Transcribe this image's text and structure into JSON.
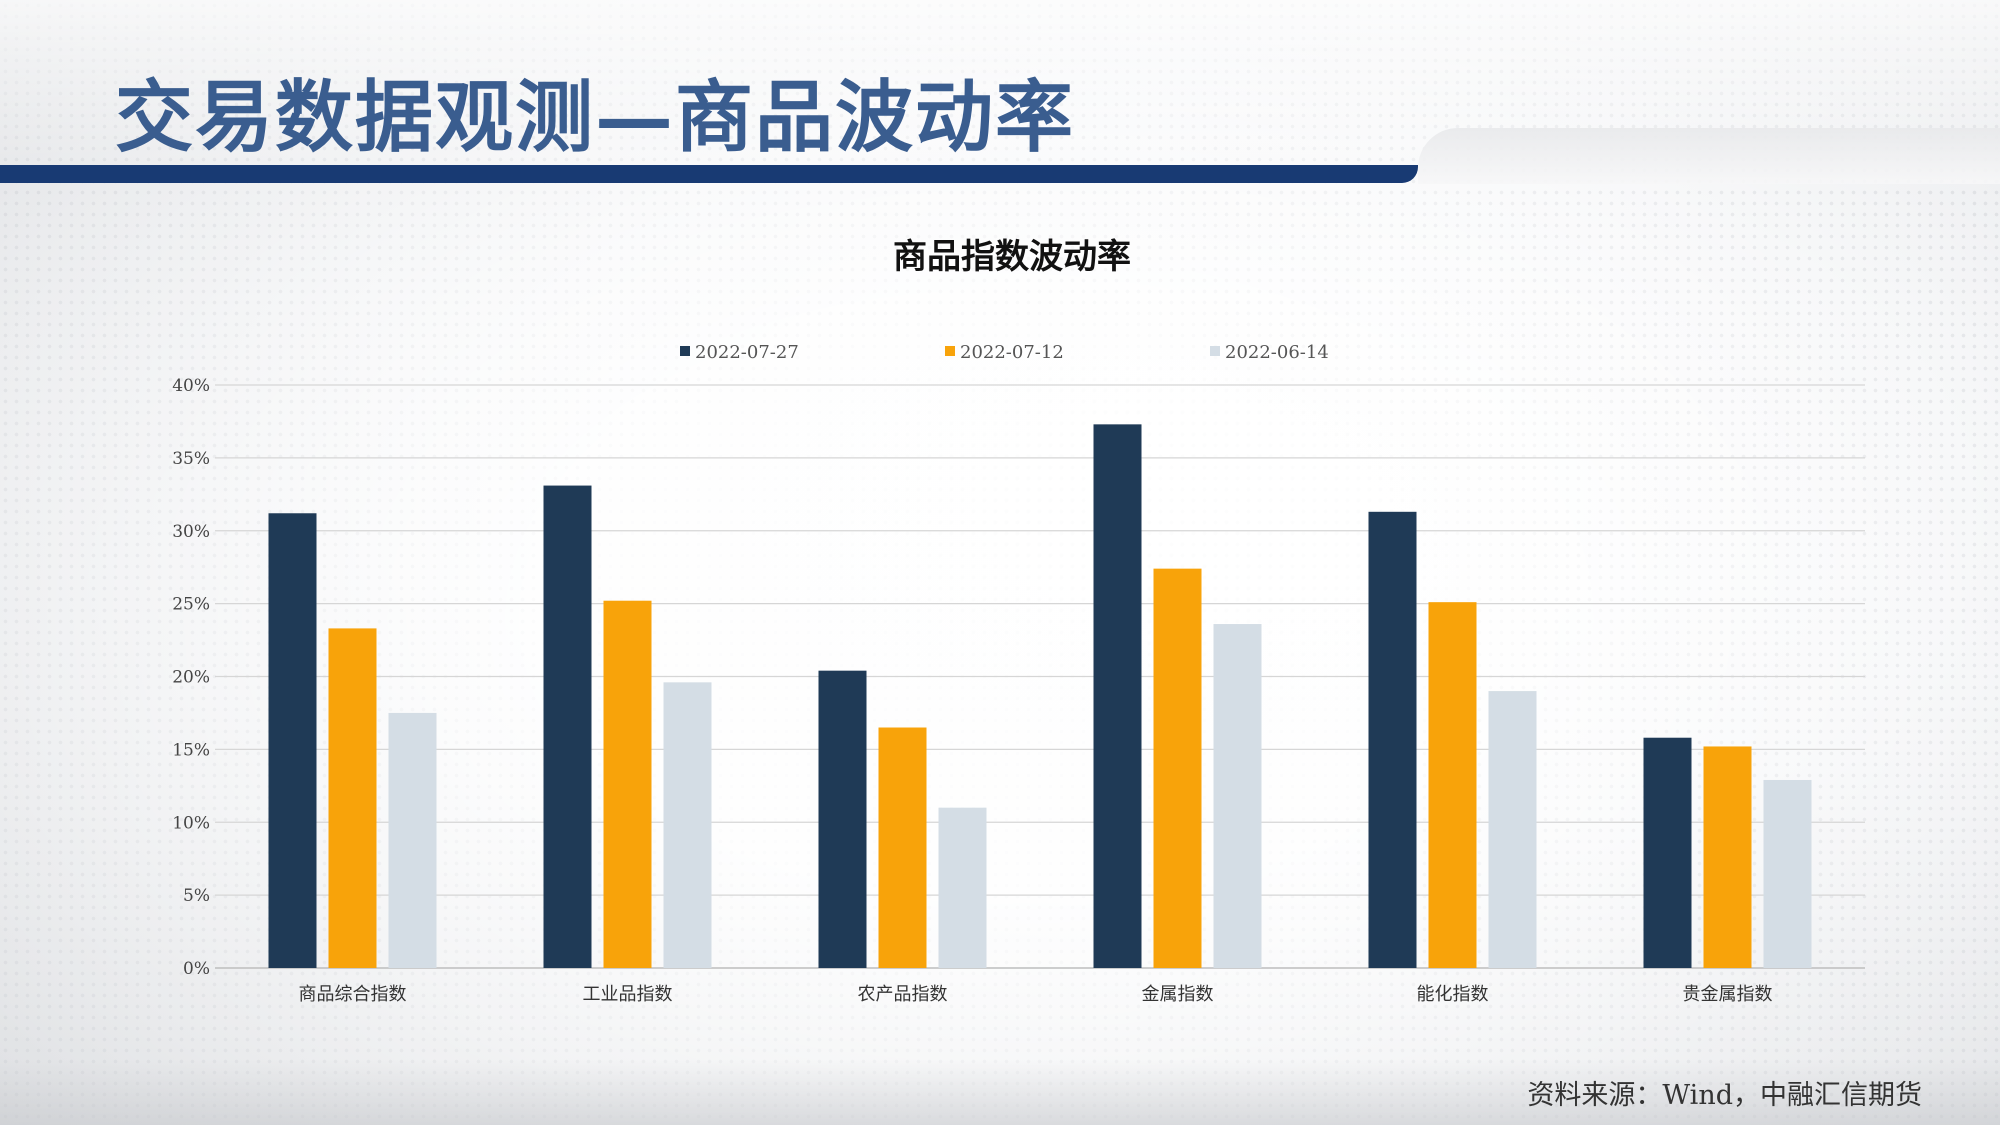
{
  "header": {
    "title": "交易数据观测—商品波动率"
  },
  "footer": {
    "source": "资料来源：Wind，中融汇信期货"
  },
  "colors": {
    "series1": "#1f3a56",
    "series2": "#f8a30a",
    "series3": "#d4dde5",
    "accent_bar": "#183a73",
    "title_text": "#3a5d8f"
  },
  "chart_data": {
    "type": "bar",
    "title": "商品指数波动率",
    "categories": [
      "商品综合指数",
      "工业品指数",
      "农产品指数",
      "金属指数",
      "能化指数",
      "贵金属指数"
    ],
    "series": [
      {
        "name": "2022-07-27",
        "values": [
          0.312,
          0.331,
          0.204,
          0.373,
          0.313,
          0.158
        ]
      },
      {
        "name": "2022-07-12",
        "values": [
          0.233,
          0.252,
          0.165,
          0.274,
          0.251,
          0.152
        ]
      },
      {
        "name": "2022-06-14",
        "values": [
          0.175,
          0.196,
          0.11,
          0.236,
          0.19,
          0.129
        ]
      }
    ],
    "ylim": [
      0,
      0.4
    ],
    "yticks": [
      0,
      0.05,
      0.1,
      0.15,
      0.2,
      0.25,
      0.3,
      0.35,
      0.4
    ],
    "ytick_labels": [
      "0%",
      "5%",
      "10%",
      "15%",
      "20%",
      "25%",
      "30%",
      "35%",
      "40%"
    ],
    "grid": true,
    "legend_position": "top"
  }
}
